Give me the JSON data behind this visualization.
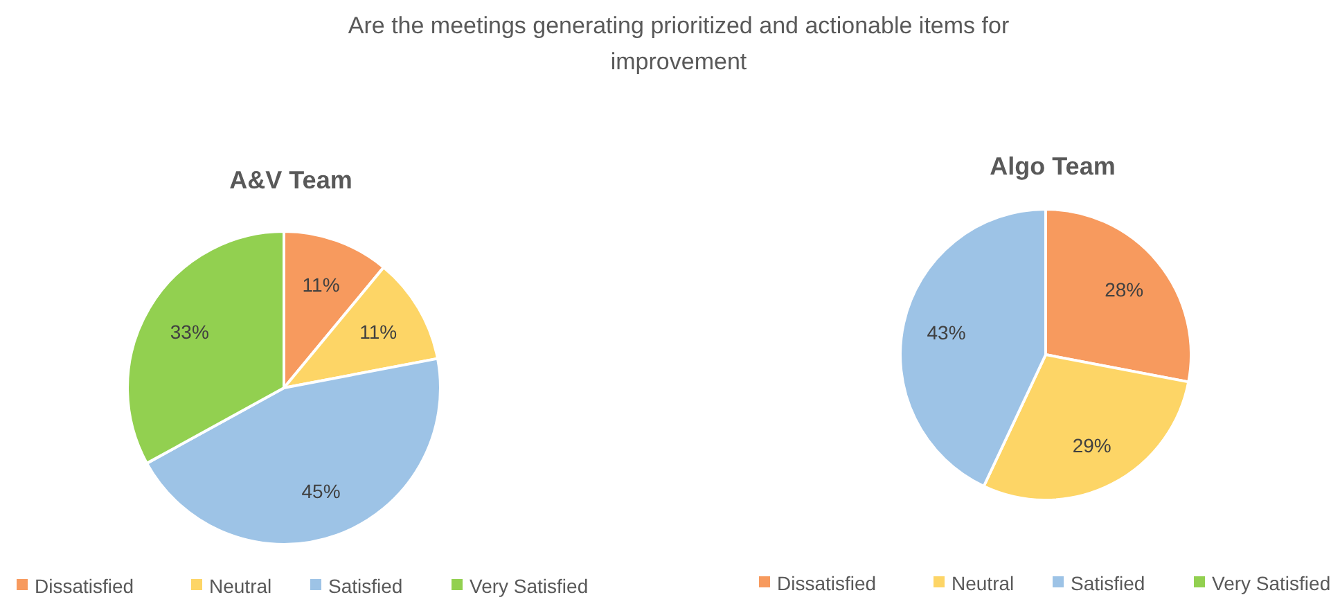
{
  "chart_data": [
    {
      "type": "other",
      "title": "Are the meetings generating prioritized and actionable items for improvement"
    },
    {
      "type": "pie",
      "title": "A&V Team",
      "categories": [
        "Dissatisfied",
        "Neutral",
        "Satisfied",
        "Very Satisfied"
      ],
      "values": [
        11,
        11,
        45,
        33
      ],
      "colors": [
        "#f79a5e",
        "#fdd566",
        "#9dc3e6",
        "#92d050"
      ],
      "value_labels": [
        "11%",
        "11%",
        "45%",
        "33%"
      ],
      "legend": "bottom"
    },
    {
      "type": "pie",
      "title": "Algo Team",
      "categories": [
        "Dissatisfied",
        "Neutral",
        "Satisfied",
        "Very Satisfied"
      ],
      "values": [
        28,
        29,
        43,
        0
      ],
      "colors": [
        "#f79a5e",
        "#fdd566",
        "#9dc3e6",
        "#92d050"
      ],
      "value_labels": [
        "28%",
        "29%",
        "43%",
        null
      ],
      "legend": "bottom"
    }
  ]
}
